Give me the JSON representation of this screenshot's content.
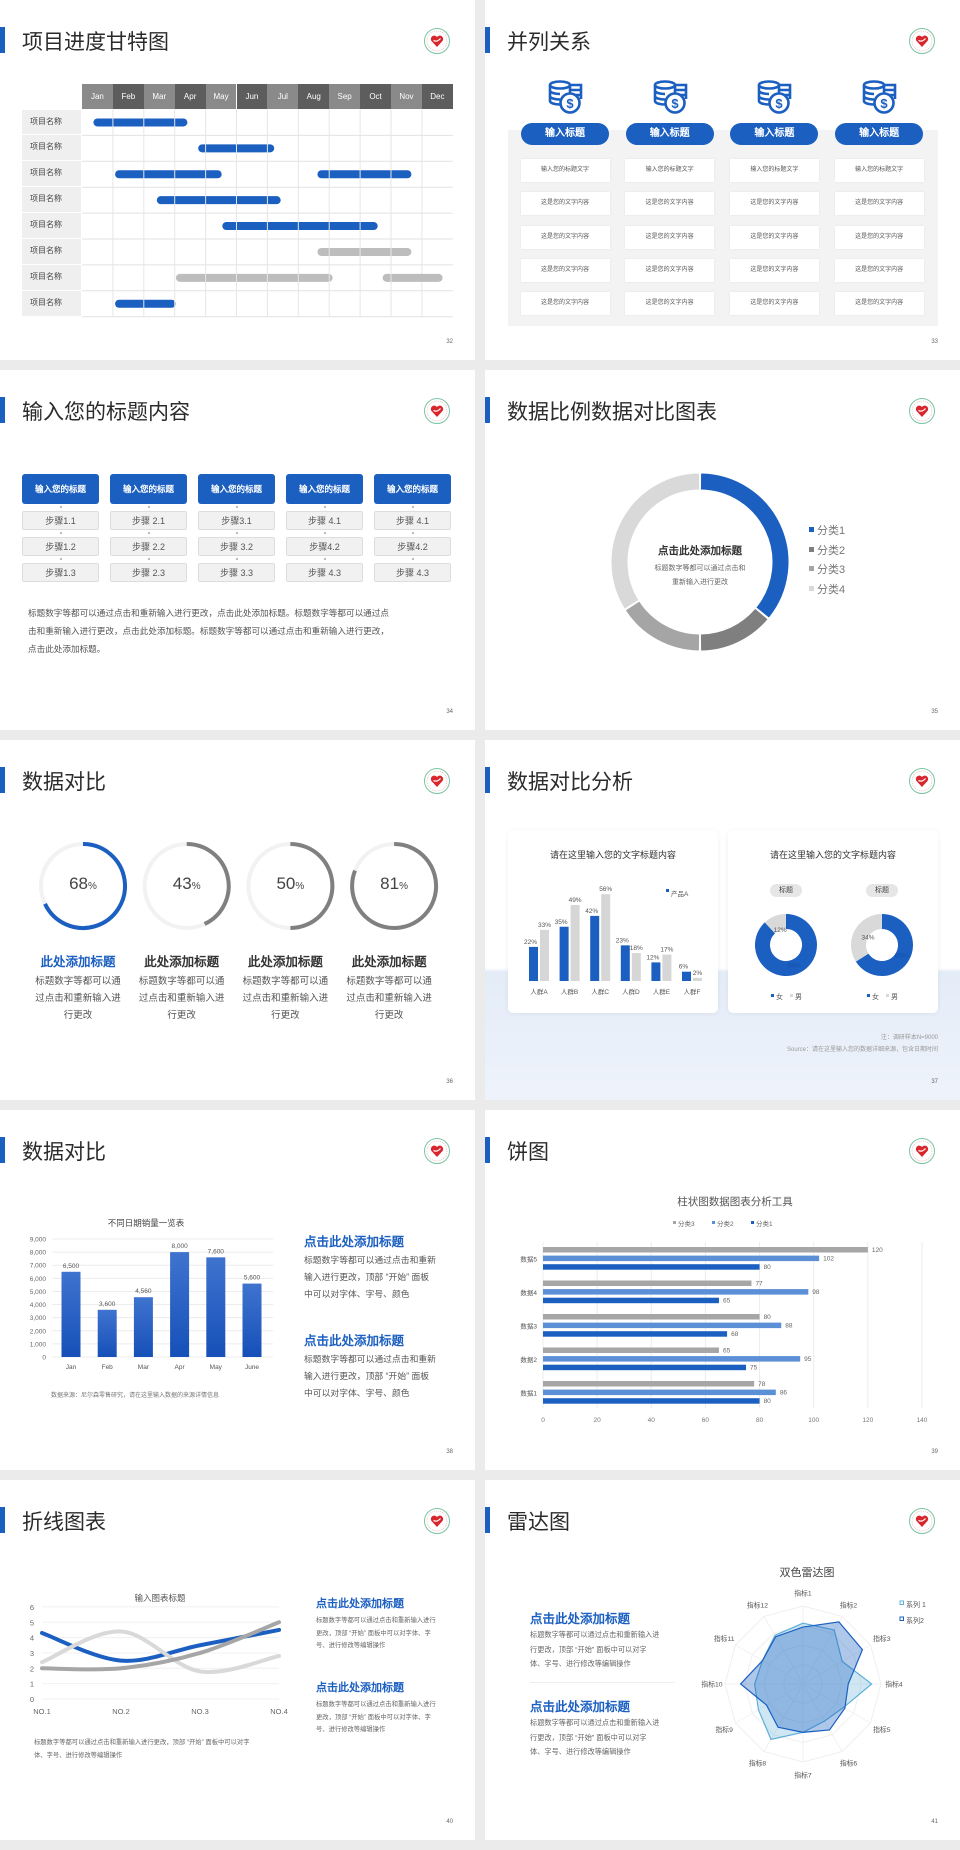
{
  "colors": {
    "accent": "#1b5fc1",
    "gray_dark": "#8a8a8a",
    "gray_mid": "#a9a9a9",
    "gray_light": "#d6d6d6"
  },
  "slide32": {
    "title": "项目进度甘特图",
    "page": "32",
    "months": [
      "Jan",
      "Feb",
      "Mar",
      "Apr",
      "May",
      "Jun",
      "Jul",
      "Aug",
      "Sep",
      "Oct",
      "Nov",
      "Dec"
    ],
    "rows": [
      {
        "label": "项目名称",
        "bars": [
          {
            "start_month": 0.37,
            "end_month": 3.41,
            "color": "blue"
          }
        ]
      },
      {
        "label": "项目名称",
        "bars": [
          {
            "start_month": 3.76,
            "end_month": 6.22,
            "color": "blue"
          }
        ]
      },
      {
        "label": "项目名称",
        "bars": [
          {
            "start_month": 1.07,
            "end_month": 4.52,
            "color": "blue"
          },
          {
            "start_month": 7.62,
            "end_month": 10.66,
            "color": "blue"
          }
        ]
      },
      {
        "label": "项目名称",
        "bars": [
          {
            "start_month": 2.42,
            "end_month": 6.43,
            "color": "blue"
          }
        ]
      },
      {
        "label": "项目名称",
        "bars": [
          {
            "start_month": 4.54,
            "end_month": 9.57,
            "color": "blue"
          }
        ]
      },
      {
        "label": "项目名称",
        "bars": [
          {
            "start_month": 7.62,
            "end_month": 10.66,
            "color": "gray"
          }
        ]
      },
      {
        "label": "项目名称",
        "bars": [
          {
            "start_month": 3.04,
            "end_month": 8.11,
            "color": "gray"
          },
          {
            "start_month": 9.73,
            "end_month": 11.67,
            "color": "gray"
          }
        ]
      },
      {
        "label": "项目名称",
        "bars": [
          {
            "start_month": 1.07,
            "end_month": 3.03,
            "color": "blue"
          }
        ]
      }
    ]
  },
  "slide33": {
    "title": "并列关系",
    "page": "33",
    "icon": "coins-dollar-icon",
    "columns": [
      {
        "heading": "输入标题",
        "items": [
          "输入您的标题文字",
          "这是您的文字内容",
          "这是您的文字内容",
          "这是您的文字内容",
          "这是您的文字内容"
        ]
      },
      {
        "heading": "输入标题",
        "items": [
          "输入您的标题文字",
          "这是您的文字内容",
          "这是您的文字内容",
          "这是您的文字内容",
          "这是您的文字内容"
        ]
      },
      {
        "heading": "输入标题",
        "items": [
          "输入您的标题文字",
          "这是您的文字内容",
          "这是您的文字内容",
          "这是您的文字内容",
          "这是您的文字内容"
        ]
      },
      {
        "heading": "输入标题",
        "items": [
          "输入您的标题文字",
          "这是您的文字内容",
          "这是您的文字内容",
          "这是您的文字内容",
          "这是您的文字内容"
        ]
      }
    ]
  },
  "slide34": {
    "title": "输入您的标题内容",
    "page": "34",
    "columns": [
      {
        "heading": "输入您的标题",
        "steps": [
          "步骤1.1",
          "步骤1.2",
          "步骤1.3"
        ]
      },
      {
        "heading": "输入您的标题",
        "steps": [
          "步骤 2.1",
          "步骤 2.2",
          "步骤 2.3"
        ]
      },
      {
        "heading": "输入您的标题",
        "steps": [
          "步骤3.1",
          "步骤 3.2",
          "步骤 3.3"
        ]
      },
      {
        "heading": "输入您的标题",
        "steps": [
          "步骤 4.1",
          "步骤4.2",
          "步骤 4.3"
        ]
      },
      {
        "heading": "输入您的标题",
        "steps": [
          "步骤 4.1",
          "步骤4.2",
          "步骤 4.3"
        ]
      }
    ],
    "paragraph": [
      "标题数字等都可以通过点击和重新输入进行更改，点击此处添加标题。标题数字等都可以通过点",
      "击和重新输入进行更改，点击此处添加标题。标题数字等都可以通过点击和重新输入进行更改，",
      "点击此处添加标题。"
    ]
  },
  "slide35": {
    "title": "数据比例数据对比图表",
    "page": "35",
    "center_title": "点击此处添加标题",
    "center_text": [
      "标题数字等都可以通过点击和",
      "重新输入进行更改"
    ]
  },
  "slide36": {
    "title": "数据对比",
    "page": "36",
    "items": [
      {
        "value": 68,
        "number": "68",
        "unit": "%",
        "heading": "此处添加标题",
        "body": [
          "标题数字等都可以通",
          "过点击和重新输入进",
          "行更改"
        ],
        "color": "#1b5fc1"
      },
      {
        "value": 43,
        "number": "43",
        "unit": "%",
        "heading": "此处添加标题",
        "body": [
          "标题数字等都可以通",
          "过点击和重新输入进",
          "行更改"
        ],
        "color": "#808080"
      },
      {
        "value": 50,
        "number": "50",
        "unit": "%",
        "heading": "此处添加标题",
        "body": [
          "标题数字等都可以通",
          "过点击和重新输入进",
          "行更改"
        ],
        "color": "#808080"
      },
      {
        "value": 81,
        "number": "81",
        "unit": "%",
        "heading": "此处添加标题",
        "body": [
          "标题数字等都可以通",
          "过点击和重新输入进",
          "行更改"
        ],
        "color": "#808080"
      }
    ]
  },
  "slide37": {
    "title": "数据对比分析",
    "page": "37",
    "card_left_title": "请在这里输入您的文字标题内容",
    "card_right_title": "请在这里输入您的文字标题内容",
    "note": "注：调研样本N=9000",
    "source": "Source：请在这里输入您的数据详细来源，包含日期时间"
  },
  "slide38": {
    "title": "数据对比",
    "page": "38",
    "source": "数据来源：尼尔森零售研究，请在这里输入数据的来源详情信息",
    "blocks": [
      {
        "heading": "点击此处添加标题",
        "body": [
          "标题数字等都可以通过点击和重新",
          "输入进行更改，顶部 “开始” 面板",
          "中可以对字体、字号、颜色"
        ]
      },
      {
        "heading": "点击此处添加标题",
        "body": [
          "标题数字等都可以通过点击和重新",
          "输入进行更改，顶部 “开始” 面板",
          "中可以对字体、字号、颜色"
        ]
      }
    ]
  },
  "slide39": {
    "title": "饼图",
    "page": "39"
  },
  "slide40": {
    "title": "折线图表",
    "page": "40",
    "caption": [
      "标题数字等都可以通过点击和重新输入进行更改，顶部 “开始” 面板中可以对字",
      "体、字号、进行修改等编辑操作"
    ],
    "blocks": [
      {
        "heading": "点击此处添加标题",
        "body": [
          "标题数字等都可以通过点击和重新输入进行",
          "更改，顶部 “开始” 面板中可以对字体、字",
          "号、进行修改等编辑操作"
        ]
      },
      {
        "heading": "点击此处添加标题",
        "body": [
          "标题数字等都可以通过点击和重新输入进行",
          "更改，顶部 “开始” 面板中可以对字体、字",
          "号、进行修改等编辑操作"
        ]
      }
    ]
  },
  "slide41": {
    "title": "雷达图",
    "page": "41",
    "blocks": [
      {
        "heading": "点击此处添加标题",
        "body": [
          "标题数字等都可以通过点击和重新输入进",
          "行更改，顶部 “开始” 面板中可以对字",
          "体、字号、进行修改等编辑操作"
        ]
      },
      {
        "heading": "点击此处添加标题",
        "body": [
          "标题数字等都可以通过点击和重新输入进",
          "行更改，顶部 “开始” 面板中可以对字",
          "体、字号、进行修改等编辑操作"
        ]
      }
    ]
  },
  "chart_data": [
    {
      "type": "pie",
      "variant": "donut",
      "categories": [
        "分类1",
        "分类2",
        "分类3",
        "分类4"
      ],
      "values": [
        36,
        14,
        16,
        34
      ],
      "colors": [
        "#1b5fc1",
        "#7f7f7f",
        "#a5a5a5",
        "#d9d9d9"
      ],
      "legend": "right"
    },
    {
      "type": "bar",
      "title": "",
      "categories": [
        "人群A",
        "人群B",
        "人群C",
        "人群D",
        "人群E",
        "人群F"
      ],
      "series": [
        {
          "name": "产品A",
          "values": [
            22,
            35,
            42,
            23,
            12,
            6
          ],
          "labels": [
            "22%",
            "35%",
            "42%",
            "23%",
            "12%",
            "6%"
          ],
          "color": "#1b5fc1"
        },
        {
          "values": [
            33,
            49,
            56,
            18,
            17,
            2
          ],
          "labels": [
            "33%",
            "49%",
            "56%",
            "18%",
            "17%",
            "2%"
          ],
          "color": "#d6d6d6"
        }
      ],
      "legend": "top-right"
    },
    {
      "type": "pie",
      "variant": "donut",
      "pill": "标题",
      "categories": [
        "女",
        "男"
      ],
      "values": [
        88,
        12
      ],
      "labels": [
        "88%",
        "12%"
      ],
      "colors": [
        "#1b5fc1",
        "#d9d9d9"
      ],
      "legend": "bottom"
    },
    {
      "type": "pie",
      "variant": "donut",
      "pill": "标题",
      "categories": [
        "女",
        "男"
      ],
      "values": [
        66,
        34
      ],
      "labels": [
        "66%",
        "34%"
      ],
      "colors": [
        "#1b5fc1",
        "#d9d9d9"
      ],
      "legend": "bottom"
    },
    {
      "type": "bar",
      "title": "不同日期销量一览表",
      "categories": [
        "Jan",
        "Feb",
        "Mar",
        "Apr",
        "May",
        "June"
      ],
      "values": [
        6500,
        3600,
        4560,
        8000,
        7600,
        5600
      ],
      "labels": [
        "6,500",
        "3,600",
        "4,560",
        "8,000",
        "7,600",
        "5,600"
      ],
      "ylim": [
        0,
        9000
      ],
      "yticks": [
        "0",
        "1,000",
        "2,000",
        "3,000",
        "4,000",
        "5,000",
        "6,000",
        "7,000",
        "8,000",
        "9,000"
      ],
      "grid": true
    },
    {
      "type": "bar",
      "orientation": "horizontal",
      "title": "柱状图数据图表分析工具",
      "categories": [
        "数据5",
        "数据4",
        "数据3",
        "数据2",
        "数据1"
      ],
      "series": [
        {
          "name": "分类3",
          "values": [
            120,
            77,
            80,
            65,
            78
          ],
          "color": "#a6a6a6"
        },
        {
          "name": "分类2",
          "values": [
            102,
            98,
            88,
            95,
            86
          ],
          "color": "#5b8fd6"
        },
        {
          "name": "分类1",
          "values": [
            80,
            65,
            68,
            75,
            80
          ],
          "color": "#1b5fc1"
        }
      ],
      "xlim": [
        0,
        140
      ],
      "xticks": [
        "0",
        "20",
        "40",
        "60",
        "80",
        "100",
        "120",
        "140"
      ],
      "legend": "top",
      "grid": true
    },
    {
      "type": "line",
      "smooth": true,
      "title": "输入图表标题",
      "categories": [
        "NO.1",
        "NO.2",
        "NO.3",
        "NO.4"
      ],
      "ylim": [
        0,
        6
      ],
      "yticks": [
        "0",
        "1",
        "2",
        "3",
        "4",
        "5",
        "6"
      ],
      "series": [
        {
          "values": [
            4.3,
            2.5,
            3.5,
            4.5
          ],
          "color": "#1b5fc1"
        },
        {
          "values": [
            2.4,
            4.4,
            1.8,
            2.8
          ],
          "color": "#d9d9d9"
        },
        {
          "values": [
            2.0,
            2.0,
            3.0,
            5.0
          ],
          "color": "#a6a6a6"
        }
      ],
      "grid": true
    },
    {
      "type": "radar",
      "title": "双色雷达图",
      "categories": [
        "指标1",
        "指标2",
        "指标3",
        "指标4",
        "指标5",
        "指标6",
        "指标7",
        "指标8",
        "指标9",
        "指标10",
        "指标11",
        "指标12"
      ],
      "range": [
        0,
        100
      ],
      "series": [
        {
          "name": "系列 1",
          "values": [
            78,
            80,
            58,
            88,
            60,
            55,
            62,
            82,
            66,
            62,
            60,
            72
          ],
          "color": "#5fb0d8"
        },
        {
          "name": "系列2",
          "values": [
            73,
            92,
            88,
            58,
            62,
            68,
            62,
            64,
            54,
            80,
            60,
            70
          ],
          "color": "#1b5fc1"
        }
      ],
      "legend": "top-right"
    }
  ]
}
